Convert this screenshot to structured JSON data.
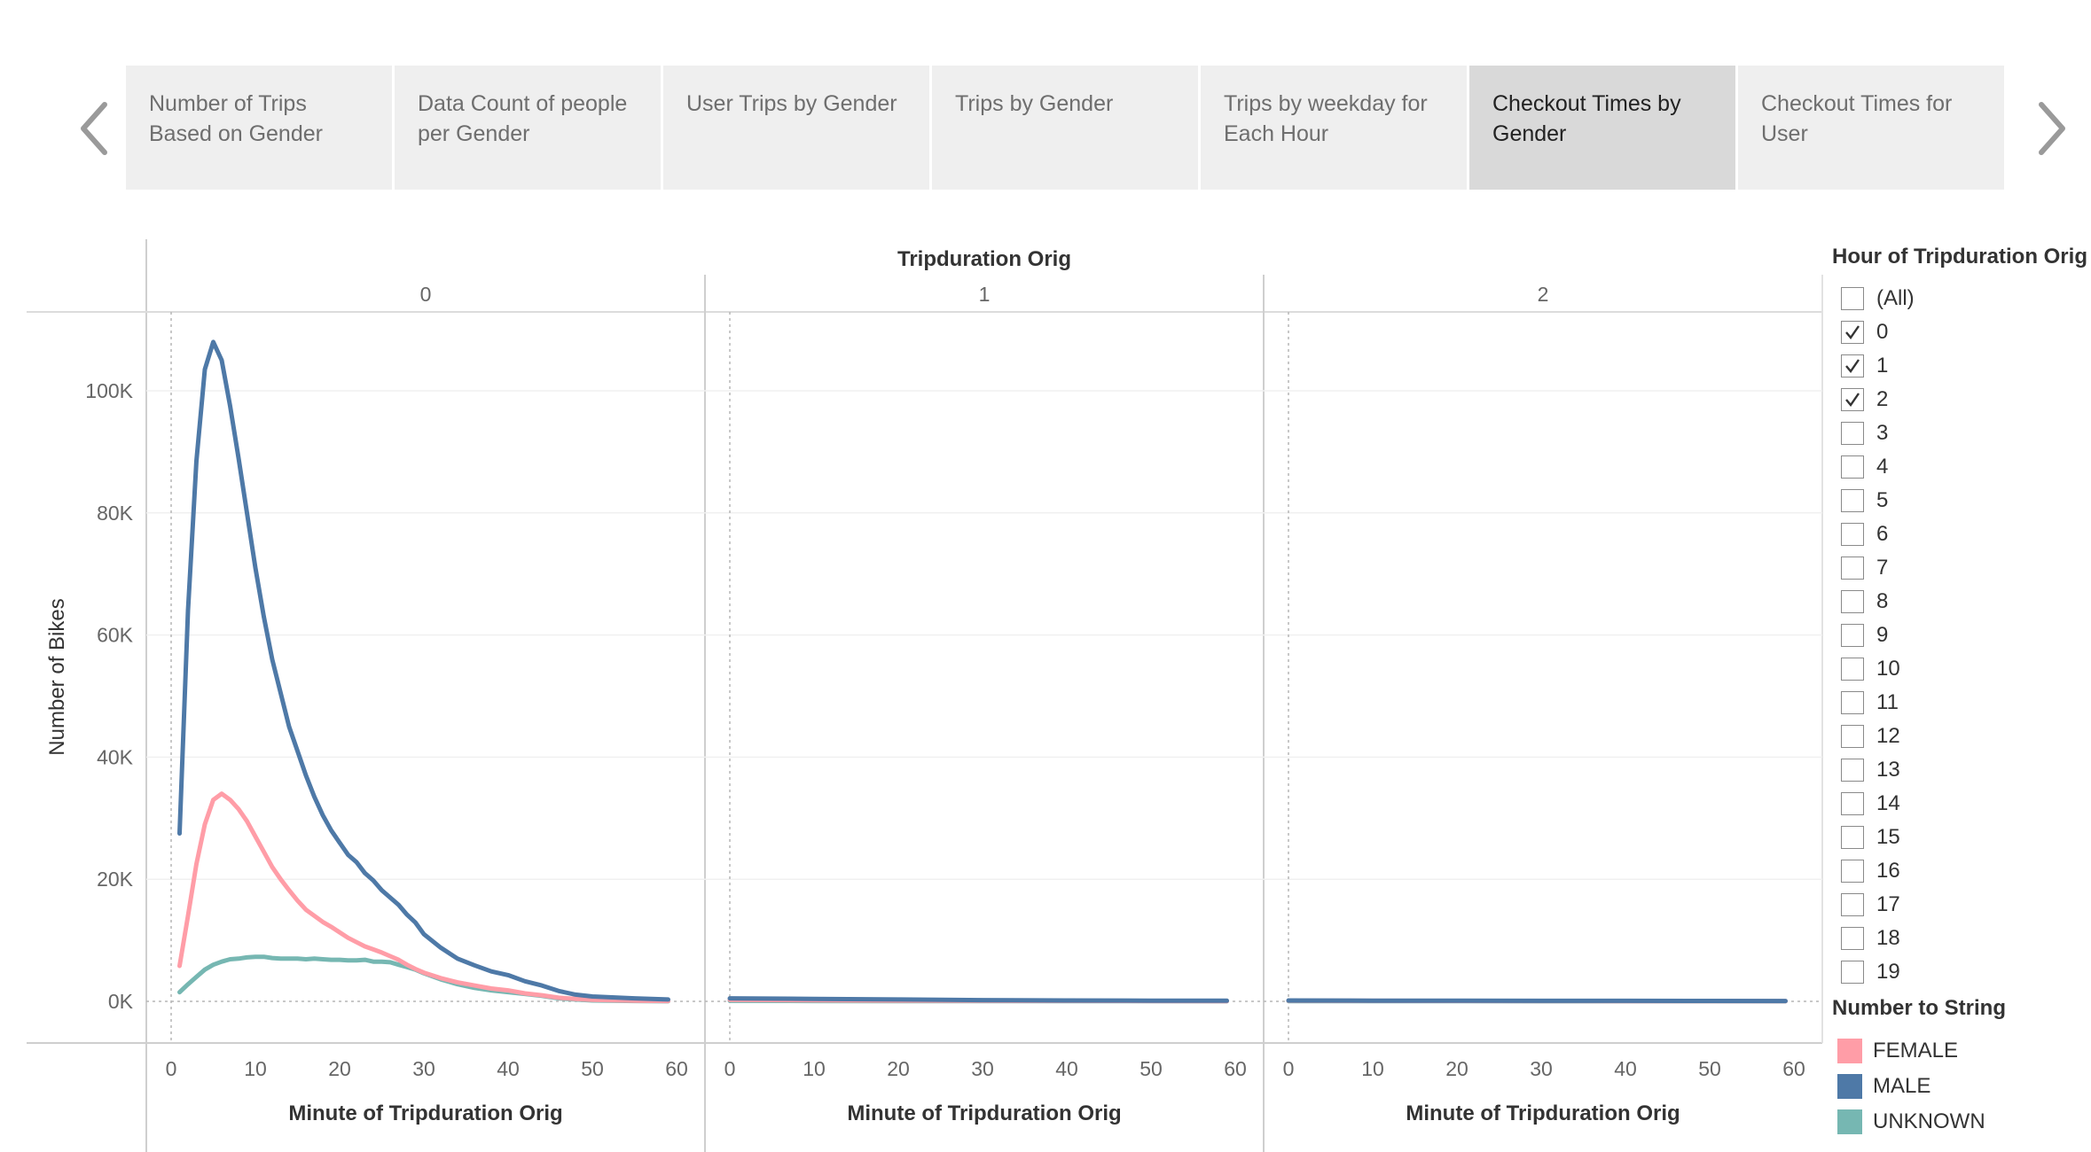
{
  "tabs": [
    {
      "label": "Number of Trips Based on Gender",
      "active": false
    },
    {
      "label": "Data Count of people per Gender",
      "active": false
    },
    {
      "label": "User Trips by Gender",
      "active": false
    },
    {
      "label": "Trips by Gender",
      "active": false
    },
    {
      "label": "Trips by weekday for Each Hour",
      "active": false
    },
    {
      "label": "Checkout Times by Gender",
      "active": true
    },
    {
      "label": "Checkout Times for User",
      "active": false
    }
  ],
  "icons": {
    "prev": "chevron-left-icon",
    "next": "chevron-right-icon",
    "check": "checkmark-icon"
  },
  "filter": {
    "title": "Hour of Tripduration Orig",
    "items": [
      {
        "label": "(All)",
        "checked": false
      },
      {
        "label": "0",
        "checked": true
      },
      {
        "label": "1",
        "checked": true
      },
      {
        "label": "2",
        "checked": true
      },
      {
        "label": "3",
        "checked": false
      },
      {
        "label": "4",
        "checked": false
      },
      {
        "label": "5",
        "checked": false
      },
      {
        "label": "6",
        "checked": false
      },
      {
        "label": "7",
        "checked": false
      },
      {
        "label": "8",
        "checked": false
      },
      {
        "label": "9",
        "checked": false
      },
      {
        "label": "10",
        "checked": false
      },
      {
        "label": "11",
        "checked": false
      },
      {
        "label": "12",
        "checked": false
      },
      {
        "label": "13",
        "checked": false
      },
      {
        "label": "14",
        "checked": false
      },
      {
        "label": "15",
        "checked": false
      },
      {
        "label": "16",
        "checked": false
      },
      {
        "label": "17",
        "checked": false
      },
      {
        "label": "18",
        "checked": false
      },
      {
        "label": "19",
        "checked": false
      }
    ]
  },
  "legend": {
    "title": "Number to String",
    "items": [
      {
        "label": "FEMALE",
        "color": "#ff9da7"
      },
      {
        "label": "MALE",
        "color": "#4e79a7"
      },
      {
        "label": "UNKNOWN",
        "color": "#76b7b2"
      }
    ]
  },
  "chart_data": {
    "type": "line",
    "title": "Tripduration Orig",
    "xlabel": "Minute of Tripduration Orig",
    "ylabel": "Number of Bikes",
    "xlim": [
      0,
      60
    ],
    "ylim": [
      0,
      110000
    ],
    "x_ticks": [
      0,
      10,
      20,
      30,
      40,
      50,
      60
    ],
    "y_ticks": [
      0,
      20000,
      40000,
      60000,
      80000,
      100000
    ],
    "y_tick_labels": [
      "0K",
      "20K",
      "40K",
      "60K",
      "80K",
      "100K"
    ],
    "grid": true,
    "legend_position": "right",
    "panels": [
      {
        "label": "0",
        "series": [
          {
            "name": "MALE",
            "color": "#4e79a7",
            "x": [
              1,
              2,
              3,
              4,
              5,
              6,
              7,
              8,
              9,
              10,
              11,
              12,
              13,
              14,
              15,
              16,
              17,
              18,
              19,
              20,
              21,
              22,
              23,
              24,
              25,
              26,
              27,
              28,
              29,
              30,
              32,
              34,
              36,
              38,
              40,
              42,
              44,
              46,
              48,
              50,
              55,
              59
            ],
            "y": [
              27500,
              64000,
              88500,
              103500,
              108000,
              105000,
              97500,
              89000,
              80000,
              71000,
              63000,
              56000,
              50500,
              45000,
              41000,
              37000,
              33500,
              30500,
              28000,
              26000,
              24000,
              22800,
              21000,
              19800,
              18200,
              17000,
              15800,
              14200,
              12900,
              11000,
              8800,
              7000,
              5900,
              4900,
              4300,
              3300,
              2600,
              1700,
              1100,
              800,
              500,
              300
            ]
          },
          {
            "name": "FEMALE",
            "color": "#ff9da7",
            "x": [
              1,
              2,
              3,
              4,
              5,
              6,
              7,
              8,
              9,
              10,
              11,
              12,
              13,
              14,
              15,
              16,
              17,
              18,
              19,
              20,
              21,
              22,
              23,
              24,
              25,
              26,
              27,
              28,
              29,
              30,
              32,
              34,
              36,
              38,
              40,
              42,
              44,
              46,
              48,
              50,
              55,
              59
            ],
            "y": [
              5800,
              14000,
              22500,
              29000,
              33000,
              34000,
              33000,
              31500,
              29500,
              27000,
              24500,
              22000,
              20000,
              18200,
              16500,
              15000,
              14000,
              13000,
              12200,
              11300,
              10400,
              9700,
              9000,
              8500,
              8000,
              7400,
              6800,
              6000,
              5300,
              4700,
              3800,
              3100,
              2600,
              2100,
              1800,
              1300,
              1000,
              600,
              400,
              250,
              120,
              60
            ]
          },
          {
            "name": "UNKNOWN",
            "color": "#76b7b2",
            "x": [
              1,
              2,
              3,
              4,
              5,
              6,
              7,
              8,
              9,
              10,
              11,
              12,
              13,
              14,
              15,
              16,
              17,
              18,
              19,
              20,
              21,
              22,
              23,
              24,
              25,
              26,
              27,
              28,
              29,
              30,
              32,
              34,
              36,
              38,
              40,
              42,
              44,
              46,
              48,
              50,
              55,
              59
            ],
            "y": [
              1500,
              2800,
              4000,
              5200,
              6000,
              6500,
              6900,
              7000,
              7200,
              7300,
              7300,
              7100,
              7000,
              7000,
              7000,
              6900,
              7000,
              6900,
              6800,
              6800,
              6700,
              6700,
              6800,
              6500,
              6500,
              6400,
              6000,
              5600,
              5200,
              4600,
              3600,
              2800,
              2200,
              1800,
              1500,
              1200,
              900,
              500,
              300,
              150,
              60,
              20
            ]
          }
        ]
      },
      {
        "label": "1",
        "series": [
          {
            "name": "MALE",
            "color": "#4e79a7",
            "x": [
              0,
              10,
              20,
              30,
              40,
              50,
              59
            ],
            "y": [
              500,
              400,
              300,
              200,
              150,
              120,
              100
            ]
          },
          {
            "name": "FEMALE",
            "color": "#ff9da7",
            "x": [
              0,
              10,
              20,
              30,
              40,
              50,
              59
            ],
            "y": [
              250,
              180,
              130,
              100,
              80,
              60,
              50
            ]
          },
          {
            "name": "UNKNOWN",
            "color": "#76b7b2",
            "x": [
              0,
              10,
              20,
              30,
              40,
              50,
              59
            ],
            "y": [
              80,
              60,
              50,
              40,
              30,
              25,
              20
            ]
          }
        ]
      },
      {
        "label": "2",
        "series": [
          {
            "name": "MALE",
            "color": "#4e79a7",
            "x": [
              0,
              10,
              20,
              30,
              40,
              50,
              59
            ],
            "y": [
              150,
              120,
              100,
              90,
              80,
              70,
              60
            ]
          },
          {
            "name": "FEMALE",
            "color": "#ff9da7",
            "x": [
              0,
              10,
              20,
              30,
              40,
              50,
              59
            ],
            "y": [
              100,
              80,
              70,
              60,
              50,
              40,
              30
            ]
          },
          {
            "name": "UNKNOWN",
            "color": "#76b7b2",
            "x": [
              0,
              10,
              20,
              30,
              40,
              50,
              59
            ],
            "y": [
              40,
              30,
              25,
              20,
              15,
              10,
              10
            ]
          }
        ]
      }
    ]
  }
}
